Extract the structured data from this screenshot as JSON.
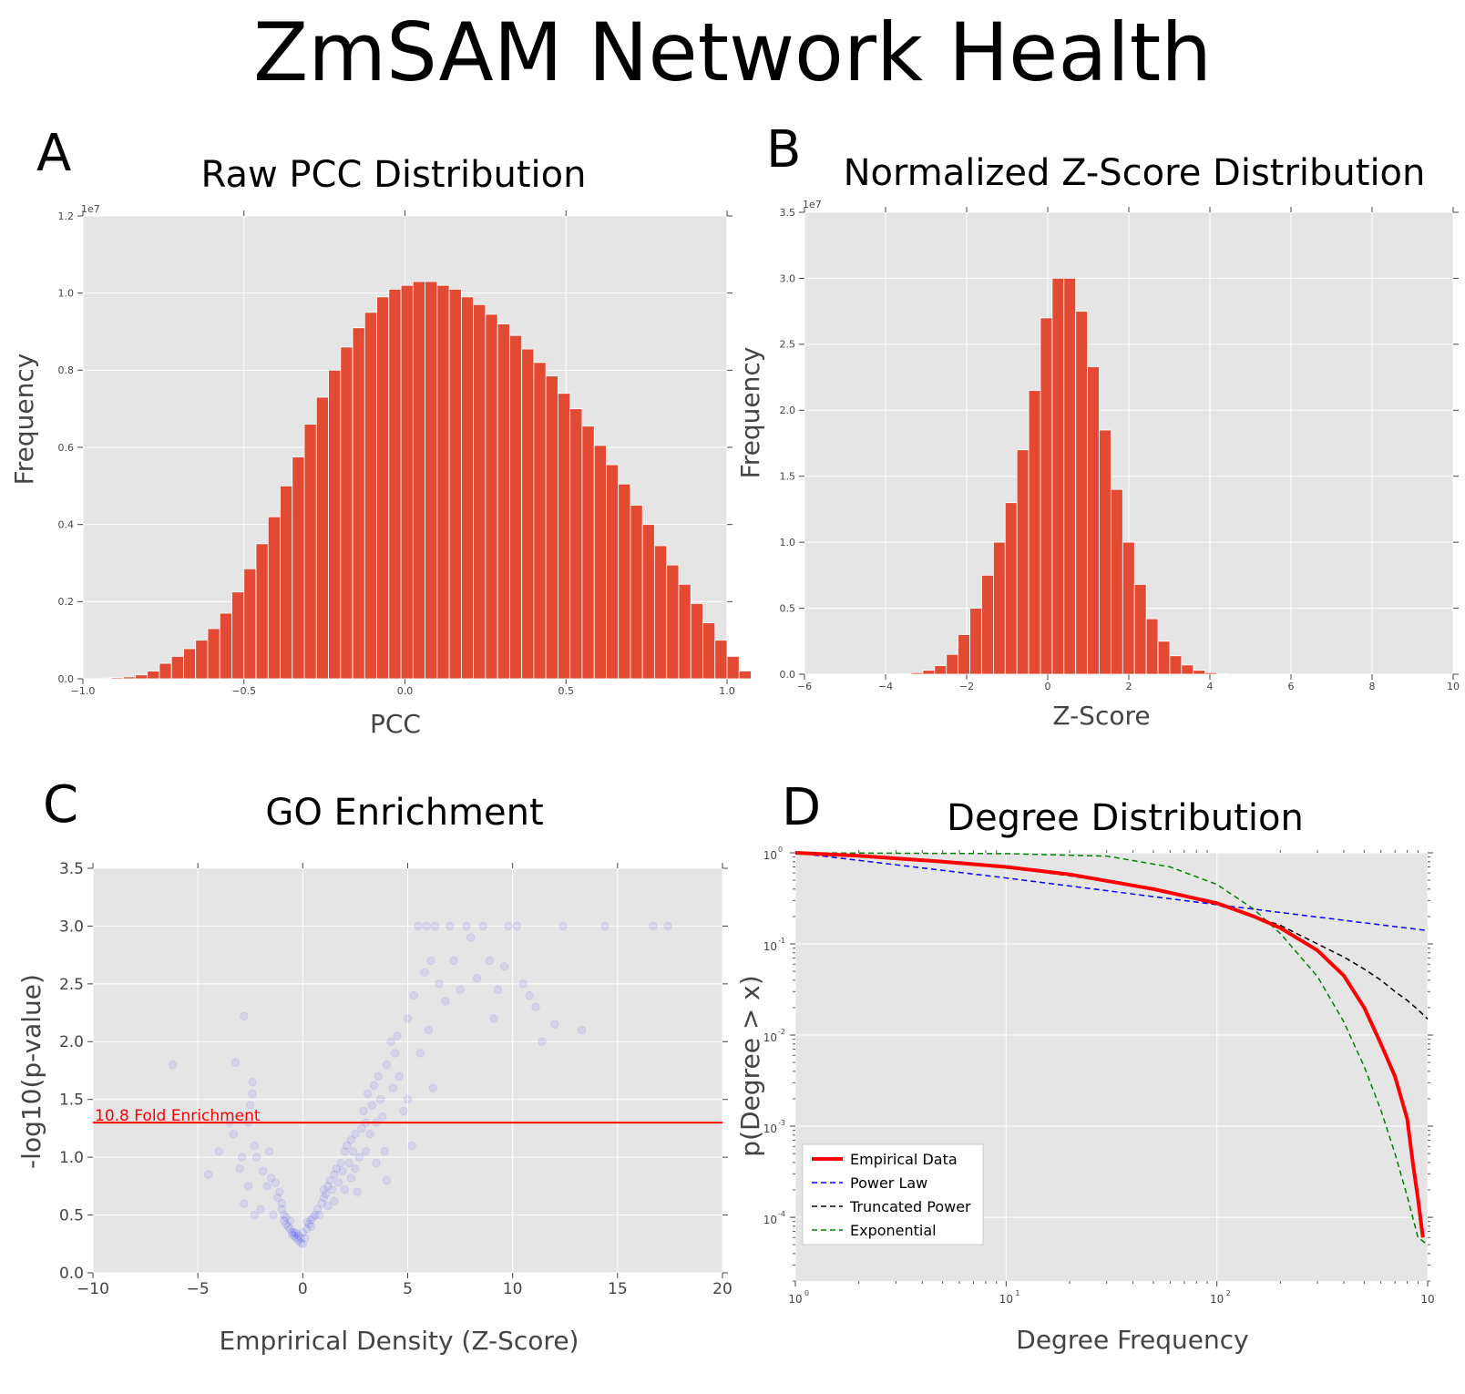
{
  "figure_title": "ZmSAM Network Health",
  "chart_data": [
    {
      "panel": "A",
      "type": "bar",
      "title": "Raw PCC Distribution",
      "xlabel": "PCC",
      "ylabel": "Frequency",
      "y_scale_label": "1e7",
      "xlim": [
        -1.0,
        1.0
      ],
      "ylim": [
        0,
        1.2
      ],
      "x_ticks": [
        -1.0,
        -0.5,
        0.0,
        0.5,
        1.0
      ],
      "x_tick_labels": [
        "−1.0",
        "−0.5",
        "0.0",
        "0.5",
        "1.0"
      ],
      "y_ticks": [
        0.0,
        0.2,
        0.4,
        0.6,
        0.8,
        1.0,
        1.2
      ],
      "y_tick_labels": [
        "0.0",
        "0.2",
        "0.4",
        "0.6",
        "0.8",
        "1.0",
        "1.2"
      ],
      "bin_start": -0.95,
      "bin_width": 0.0375,
      "values": [
        0.002,
        0.003,
        0.005,
        0.01,
        0.02,
        0.04,
        0.058,
        0.078,
        0.1,
        0.13,
        0.17,
        0.225,
        0.285,
        0.35,
        0.42,
        0.5,
        0.575,
        0.66,
        0.73,
        0.8,
        0.86,
        0.91,
        0.95,
        0.99,
        1.01,
        1.02,
        1.03,
        1.03,
        1.02,
        1.01,
        0.99,
        0.97,
        0.945,
        0.92,
        0.89,
        0.855,
        0.82,
        0.785,
        0.74,
        0.7,
        0.655,
        0.605,
        0.555,
        0.505,
        0.45,
        0.4,
        0.345,
        0.295,
        0.245,
        0.195,
        0.145,
        0.1,
        0.058,
        0.02
      ]
    },
    {
      "panel": "B",
      "type": "bar",
      "title": "Normalized Z-Score Distribution",
      "xlabel": "Z-Score",
      "ylabel": "Frequency",
      "y_scale_label": "1e7",
      "xlim": [
        -6,
        10
      ],
      "ylim": [
        0,
        3.5
      ],
      "x_ticks": [
        -6,
        -4,
        -2,
        0,
        2,
        4,
        6,
        8,
        10
      ],
      "x_tick_labels": [
        "−6",
        "−4",
        "−2",
        "0",
        "2",
        "4",
        "6",
        "8",
        "10"
      ],
      "y_ticks": [
        0.0,
        0.5,
        1.0,
        1.5,
        2.0,
        2.5,
        3.0,
        3.5
      ],
      "y_tick_labels": [
        "0.0",
        "0.5",
        "1.0",
        "1.5",
        "2.0",
        "2.5",
        "3.0",
        "3.5"
      ],
      "bin_start": -3.66,
      "bin_width": 0.29,
      "values": [
        0.003,
        0.012,
        0.03,
        0.065,
        0.15,
        0.3,
        0.5,
        0.75,
        1.0,
        1.3,
        1.7,
        2.15,
        2.7,
        3.0,
        3.0,
        2.75,
        2.33,
        1.85,
        1.4,
        1.0,
        0.68,
        0.42,
        0.25,
        0.14,
        0.07,
        0.03,
        0.012,
        0.004
      ]
    },
    {
      "panel": "C",
      "type": "scatter",
      "title": "GO Enrichment",
      "xlabel": "Emprirical Density (Z-Score)",
      "ylabel": "-log10(p-value)",
      "xlim": [
        -10,
        20
      ],
      "ylim": [
        0.0,
        3.5
      ],
      "x_ticks": [
        -10,
        -5,
        0,
        5,
        10,
        15,
        20
      ],
      "x_tick_labels": [
        "−10",
        "−5",
        "0",
        "5",
        "10",
        "15",
        "20"
      ],
      "y_ticks": [
        0.0,
        0.5,
        1.0,
        1.5,
        2.0,
        2.5,
        3.0,
        3.5
      ],
      "y_tick_labels": [
        "0.0",
        "0.5",
        "1.0",
        "1.5",
        "2.0",
        "2.5",
        "3.0",
        "3.5"
      ],
      "hline": {
        "y": 1.3,
        "label": "10.8 Fold Enrichment",
        "color": "#ff0000"
      },
      "point_color": "#0000ff",
      "points": [
        [
          -6.2,
          1.8
        ],
        [
          -4.5,
          0.85
        ],
        [
          -4.0,
          1.05
        ],
        [
          -3.5,
          1.3
        ],
        [
          -3.3,
          1.2
        ],
        [
          -3.2,
          1.82
        ],
        [
          -3.0,
          0.9
        ],
        [
          -2.9,
          1.0
        ],
        [
          -2.8,
          2.22
        ],
        [
          -2.8,
          0.6
        ],
        [
          -2.6,
          1.3
        ],
        [
          -2.6,
          0.75
        ],
        [
          -2.5,
          1.45
        ],
        [
          -2.4,
          1.55
        ],
        [
          -2.4,
          1.65
        ],
        [
          -2.3,
          1.1
        ],
        [
          -2.3,
          0.5
        ],
        [
          -2.2,
          1.0
        ],
        [
          -2.0,
          0.55
        ],
        [
          -1.9,
          0.88
        ],
        [
          -1.7,
          0.75
        ],
        [
          -1.6,
          1.05
        ],
        [
          -1.5,
          0.82
        ],
        [
          -1.4,
          0.5
        ],
        [
          -1.3,
          0.78
        ],
        [
          -1.2,
          0.65
        ],
        [
          -1.1,
          0.7
        ],
        [
          -1.0,
          0.55
        ],
        [
          -1.0,
          0.6
        ],
        [
          -0.9,
          0.5
        ],
        [
          -0.9,
          0.45
        ],
        [
          -0.8,
          0.48
        ],
        [
          -0.8,
          0.42
        ],
        [
          -0.7,
          0.4
        ],
        [
          -0.6,
          0.38
        ],
        [
          -0.6,
          0.45
        ],
        [
          -0.5,
          0.35
        ],
        [
          -0.5,
          0.33
        ],
        [
          -0.4,
          0.35
        ],
        [
          -0.4,
          0.32
        ],
        [
          -0.3,
          0.3
        ],
        [
          -0.3,
          0.34
        ],
        [
          -0.2,
          0.28
        ],
        [
          -0.2,
          0.32
        ],
        [
          -0.1,
          0.26
        ],
        [
          -0.1,
          0.3
        ],
        [
          0.0,
          0.25
        ],
        [
          0.0,
          0.35
        ],
        [
          0.1,
          0.3
        ],
        [
          0.2,
          0.38
        ],
        [
          0.2,
          0.44
        ],
        [
          0.3,
          0.42
        ],
        [
          0.4,
          0.46
        ],
        [
          0.4,
          0.4
        ],
        [
          0.5,
          0.48
        ],
        [
          0.6,
          0.5
        ],
        [
          0.7,
          0.55
        ],
        [
          0.8,
          0.5
        ],
        [
          0.9,
          0.6
        ],
        [
          1.0,
          0.65
        ],
        [
          1.0,
          0.72
        ],
        [
          1.1,
          0.68
        ],
        [
          1.2,
          0.75
        ],
        [
          1.2,
          0.58
        ],
        [
          1.3,
          0.8
        ],
        [
          1.4,
          0.72
        ],
        [
          1.5,
          0.85
        ],
        [
          1.5,
          0.62
        ],
        [
          1.6,
          0.9
        ],
        [
          1.7,
          0.78
        ],
        [
          1.8,
          0.95
        ],
        [
          1.9,
          0.88
        ],
        [
          2.0,
          1.05
        ],
        [
          2.0,
          0.72
        ],
        [
          2.1,
          1.1
        ],
        [
          2.2,
          0.95
        ],
        [
          2.3,
          1.15
        ],
        [
          2.3,
          0.82
        ],
        [
          2.4,
          1.05
        ],
        [
          2.5,
          1.2
        ],
        [
          2.5,
          0.9
        ],
        [
          2.6,
          0.7
        ],
        [
          2.7,
          1.0
        ],
        [
          2.8,
          1.25
        ],
        [
          2.9,
          1.4
        ],
        [
          3.0,
          1.3
        ],
        [
          3.0,
          1.05
        ],
        [
          3.1,
          1.55
        ],
        [
          3.2,
          1.2
        ],
        [
          3.3,
          1.45
        ],
        [
          3.4,
          1.62
        ],
        [
          3.5,
          1.3
        ],
        [
          3.5,
          0.95
        ],
        [
          3.6,
          1.7
        ],
        [
          3.7,
          1.5
        ],
        [
          3.8,
          1.35
        ],
        [
          3.9,
          1.05
        ],
        [
          4.0,
          1.8
        ],
        [
          4.0,
          0.8
        ],
        [
          4.2,
          2.0
        ],
        [
          4.3,
          1.6
        ],
        [
          4.4,
          1.9
        ],
        [
          4.5,
          2.05
        ],
        [
          4.6,
          1.7
        ],
        [
          4.8,
          1.4
        ],
        [
          5.0,
          2.2
        ],
        [
          5.0,
          1.5
        ],
        [
          5.2,
          1.1
        ],
        [
          5.3,
          2.4
        ],
        [
          5.5,
          3.0
        ],
        [
          5.6,
          1.9
        ],
        [
          5.8,
          2.6
        ],
        [
          5.9,
          3.0
        ],
        [
          6.0,
          2.1
        ],
        [
          6.1,
          2.7
        ],
        [
          6.2,
          1.6
        ],
        [
          6.3,
          3.0
        ],
        [
          6.5,
          2.5
        ],
        [
          6.8,
          2.35
        ],
        [
          7.0,
          3.0
        ],
        [
          7.2,
          2.7
        ],
        [
          7.5,
          2.45
        ],
        [
          7.8,
          3.0
        ],
        [
          8.0,
          2.9
        ],
        [
          8.3,
          2.55
        ],
        [
          8.6,
          3.0
        ],
        [
          8.9,
          2.7
        ],
        [
          9.1,
          2.2
        ],
        [
          9.3,
          2.45
        ],
        [
          9.6,
          2.65
        ],
        [
          9.8,
          3.0
        ],
        [
          10.2,
          3.0
        ],
        [
          10.5,
          2.5
        ],
        [
          10.8,
          2.4
        ],
        [
          11.1,
          2.3
        ],
        [
          11.4,
          2.0
        ],
        [
          12.0,
          2.15
        ],
        [
          12.4,
          3.0
        ],
        [
          13.3,
          2.1
        ],
        [
          14.4,
          3.0
        ],
        [
          16.7,
          3.0
        ],
        [
          17.4,
          3.0
        ]
      ]
    },
    {
      "panel": "D",
      "type": "line",
      "title": "Degree Distribution",
      "xlabel": "Degree Frequency",
      "ylabel": "p(Degree > x)",
      "x_scale": "log",
      "y_scale": "log",
      "xlim": [
        1,
        1000
      ],
      "ylim": [
        2e-05,
        1
      ],
      "x_ticks": [
        1,
        10,
        100,
        1000
      ],
      "x_tick_labels": [
        "10",
        "10",
        "10",
        "10"
      ],
      "x_tick_exponents": [
        "0",
        "1",
        "2",
        ""
      ],
      "y_ticks": [
        1,
        0.1,
        0.01,
        0.001,
        0.0001
      ],
      "y_tick_labels": [
        "10",
        "10",
        "10",
        "10",
        "10"
      ],
      "y_tick_exponents": [
        "0",
        "-1",
        "-2",
        "-3",
        "-4"
      ],
      "legend_position": "lower-left",
      "series": [
        {
          "name": "Empirical Data",
          "color": "#ff0000",
          "style": "solid",
          "x": [
            1,
            2,
            5,
            10,
            20,
            50,
            100,
            150,
            200,
            300,
            400,
            500,
            600,
            700,
            800,
            850,
            900,
            950
          ],
          "y": [
            1.0,
            0.93,
            0.8,
            0.7,
            0.58,
            0.4,
            0.28,
            0.2,
            0.15,
            0.085,
            0.045,
            0.02,
            0.008,
            0.0035,
            0.0012,
            0.0004,
            0.00016,
            6e-05
          ]
        },
        {
          "name": "Power Law",
          "color": "#0000ff",
          "style": "dashed",
          "x": [
            1,
            10,
            100,
            1000
          ],
          "y": [
            1.0,
            0.53,
            0.27,
            0.14
          ]
        },
        {
          "name": "Truncated Power",
          "color": "#000000",
          "style": "dashed",
          "x": [
            1,
            2,
            5,
            10,
            20,
            50,
            100,
            150,
            200,
            300,
            400,
            500,
            600,
            700,
            800,
            900,
            1000
          ],
          "y": [
            1.0,
            0.92,
            0.8,
            0.69,
            0.56,
            0.4,
            0.27,
            0.2,
            0.16,
            0.1,
            0.072,
            0.053,
            0.04,
            0.03,
            0.024,
            0.019,
            0.015
          ]
        },
        {
          "name": "Exponential",
          "color": "#008000",
          "style": "dashed",
          "x": [
            1,
            10,
            30,
            60,
            100,
            150,
            200,
            300,
            400,
            500,
            600,
            700,
            800,
            900,
            1000
          ],
          "y": [
            1.0,
            0.98,
            0.92,
            0.7,
            0.45,
            0.24,
            0.13,
            0.044,
            0.014,
            0.0045,
            0.0015,
            0.0005,
            0.00017,
            6e-05,
            5e-05
          ]
        }
      ]
    }
  ]
}
